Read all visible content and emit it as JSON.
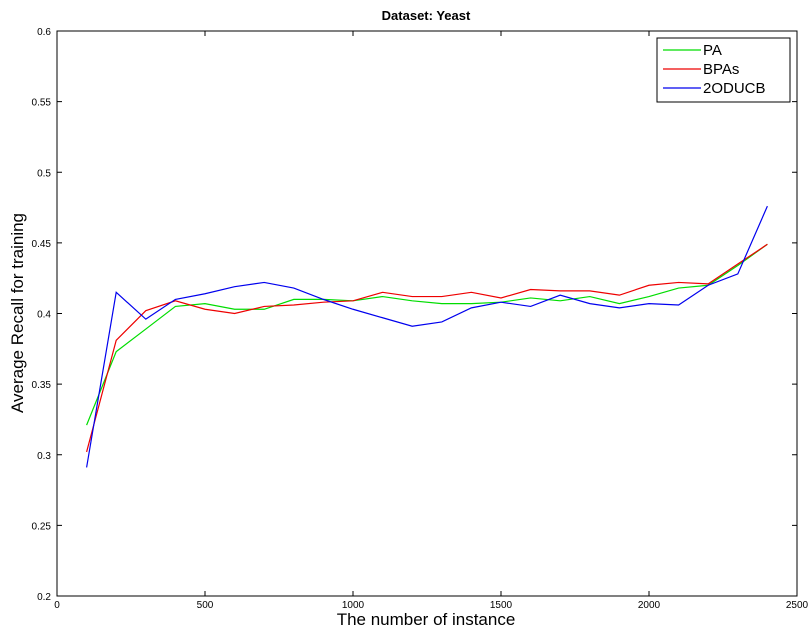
{
  "chart_data": {
    "type": "line",
    "title": "Dataset: Yeast",
    "xlabel": "The number of instance",
    "ylabel": "Average Recall for training",
    "xlim": [
      0,
      2500
    ],
    "ylim": [
      0.2,
      0.6
    ],
    "xticks": [
      0,
      500,
      1000,
      1500,
      2000,
      2500
    ],
    "yticks": [
      0.2,
      0.25,
      0.3,
      0.35,
      0.4,
      0.45,
      0.5,
      0.55,
      0.6
    ],
    "xtick_labels": [
      "0",
      "500",
      "1000",
      "1500",
      "2000",
      "2500"
    ],
    "ytick_labels": [
      "0.2",
      "0.25",
      "0.3",
      "0.35",
      "0.4",
      "0.45",
      "0.5",
      "0.55",
      "0.6"
    ],
    "grid": false,
    "legend_position": "top-right",
    "x": [
      100,
      200,
      300,
      400,
      500,
      600,
      700,
      800,
      900,
      1000,
      1100,
      1200,
      1300,
      1400,
      1500,
      1600,
      1700,
      1800,
      1900,
      2000,
      2100,
      2200,
      2300,
      2400
    ],
    "series": [
      {
        "name": "PA",
        "color": "#00dd00",
        "values": [
          0.321,
          0.373,
          0.389,
          0.405,
          0.407,
          0.403,
          0.403,
          0.41,
          0.41,
          0.409,
          0.412,
          0.409,
          0.407,
          0.407,
          0.408,
          0.411,
          0.409,
          0.412,
          0.407,
          0.412,
          0.418,
          0.42,
          0.434,
          0.449
        ]
      },
      {
        "name": "BPAs",
        "color": "#ee0000",
        "values": [
          0.302,
          0.381,
          0.402,
          0.409,
          0.403,
          0.4,
          0.405,
          0.406,
          0.408,
          0.409,
          0.415,
          0.412,
          0.412,
          0.415,
          0.411,
          0.417,
          0.416,
          0.416,
          0.413,
          0.42,
          0.422,
          0.421,
          0.435,
          0.449
        ]
      },
      {
        "name": "2ODUCB",
        "color": "#0000ee",
        "values": [
          0.291,
          0.415,
          0.396,
          0.41,
          0.414,
          0.419,
          0.422,
          0.418,
          0.41,
          0.403,
          0.397,
          0.391,
          0.394,
          0.404,
          0.408,
          0.405,
          0.413,
          0.407,
          0.404,
          0.407,
          0.406,
          0.42,
          0.428,
          0.476
        ]
      }
    ]
  }
}
